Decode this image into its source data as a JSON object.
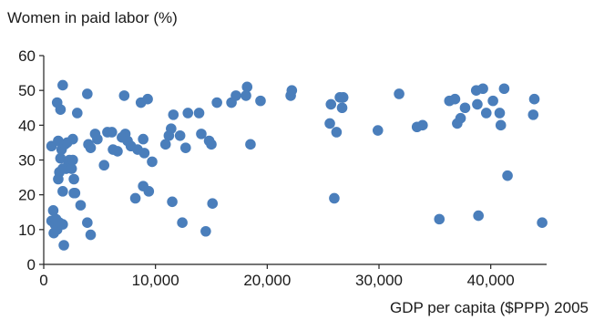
{
  "chart_data": {
    "type": "scatter",
    "title": "",
    "ylabel": "Women in paid labor (%)",
    "xlabel": "GDP per capita ($PPP) 2005",
    "xlim": [
      0,
      45000
    ],
    "ylim": [
      0,
      60
    ],
    "x_ticks": [
      0,
      10000,
      20000,
      30000,
      40000
    ],
    "x_tick_labels": [
      "0",
      "10,000",
      "20,000",
      "30,000",
      "40,000"
    ],
    "y_ticks": [
      0,
      10,
      20,
      30,
      40,
      50,
      60
    ],
    "y_tick_labels": [
      "0",
      "10",
      "20",
      "30",
      "40",
      "50",
      "60"
    ],
    "grid": false,
    "legend": "none",
    "marker_color": "#4a7ebb",
    "points": [
      [
        700,
        12.5
      ],
      [
        850,
        15.5
      ],
      [
        900,
        9
      ],
      [
        1000,
        11.5
      ],
      [
        1100,
        13
      ],
      [
        1200,
        10
      ],
      [
        1400,
        12
      ],
      [
        1700,
        11.5
      ],
      [
        1800,
        5.5
      ],
      [
        700,
        34
      ],
      [
        1200,
        46.5
      ],
      [
        1500,
        44.5
      ],
      [
        1700,
        51.5
      ],
      [
        1300,
        35.5
      ],
      [
        1500,
        30.5
      ],
      [
        1400,
        26.5
      ],
      [
        1700,
        27.5
      ],
      [
        1600,
        33
      ],
      [
        1900,
        34.5
      ],
      [
        2100,
        35
      ],
      [
        1300,
        24.5
      ],
      [
        1700,
        21
      ],
      [
        2000,
        27.5
      ],
      [
        2200,
        29.5
      ],
      [
        2300,
        30
      ],
      [
        2500,
        27.5
      ],
      [
        2600,
        30
      ],
      [
        2700,
        24.5
      ],
      [
        2600,
        36
      ],
      [
        2700,
        20.5
      ],
      [
        2800,
        20.5
      ],
      [
        3000,
        43.5
      ],
      [
        3300,
        17
      ],
      [
        3900,
        49
      ],
      [
        4000,
        34.5
      ],
      [
        4200,
        33.5
      ],
      [
        3900,
        12
      ],
      [
        4200,
        8.5
      ],
      [
        4600,
        37.5
      ],
      [
        4800,
        36
      ],
      [
        5400,
        28.5
      ],
      [
        5700,
        38
      ],
      [
        6100,
        38
      ],
      [
        6200,
        33
      ],
      [
        6600,
        32.5
      ],
      [
        7000,
        36.5
      ],
      [
        7200,
        48.5
      ],
      [
        7300,
        37.5
      ],
      [
        7500,
        35.5
      ],
      [
        7800,
        34
      ],
      [
        8200,
        19
      ],
      [
        8400,
        33
      ],
      [
        8700,
        46.5
      ],
      [
        8900,
        36
      ],
      [
        9000,
        32
      ],
      [
        8900,
        22.5
      ],
      [
        9300,
        47.5
      ],
      [
        9400,
        21
      ],
      [
        9700,
        29.5
      ],
      [
        10900,
        34.5
      ],
      [
        11200,
        37
      ],
      [
        11400,
        39
      ],
      [
        11500,
        18
      ],
      [
        11600,
        43
      ],
      [
        12200,
        37
      ],
      [
        12400,
        12
      ],
      [
        12700,
        33.5
      ],
      [
        12900,
        43.5
      ],
      [
        13900,
        43.5
      ],
      [
        14100,
        37.5
      ],
      [
        14500,
        9.5
      ],
      [
        14800,
        35.5
      ],
      [
        15100,
        17.5
      ],
      [
        15000,
        34.5
      ],
      [
        15500,
        46.5
      ],
      [
        16800,
        46.5
      ],
      [
        17200,
        48.5
      ],
      [
        18100,
        48.5
      ],
      [
        18200,
        51
      ],
      [
        18500,
        34.5
      ],
      [
        19400,
        47
      ],
      [
        22100,
        48.5
      ],
      [
        22200,
        50
      ],
      [
        25600,
        40.5
      ],
      [
        25700,
        46
      ],
      [
        26000,
        19
      ],
      [
        26200,
        38
      ],
      [
        26500,
        48
      ],
      [
        26800,
        48
      ],
      [
        26700,
        45
      ],
      [
        29900,
        38.5
      ],
      [
        31800,
        49
      ],
      [
        33400,
        39.5
      ],
      [
        33900,
        40
      ],
      [
        35400,
        13
      ],
      [
        36300,
        47
      ],
      [
        36800,
        47.5
      ],
      [
        37000,
        40.5
      ],
      [
        37300,
        42
      ],
      [
        37700,
        45
      ],
      [
        38700,
        50
      ],
      [
        38800,
        46
      ],
      [
        38900,
        14
      ],
      [
        39300,
        50.5
      ],
      [
        39600,
        43.5
      ],
      [
        40200,
        47
      ],
      [
        40800,
        43.5
      ],
      [
        40900,
        40
      ],
      [
        41200,
        50.5
      ],
      [
        41500,
        25.5
      ],
      [
        43800,
        43
      ],
      [
        43900,
        47.5
      ],
      [
        44600,
        12
      ]
    ]
  }
}
